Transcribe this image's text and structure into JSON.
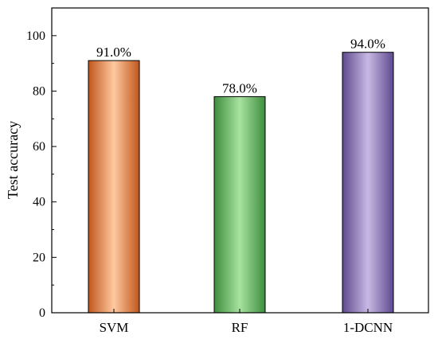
{
  "chart_data": {
    "type": "bar",
    "categories": [
      "SVM",
      "RF",
      "1-DCNN"
    ],
    "values": [
      91.0,
      78.0,
      94.0
    ],
    "value_labels": [
      "91.0%",
      "78.0%",
      "94.0%"
    ],
    "title": "",
    "xlabel": "",
    "ylabel": "Test accuracy",
    "ylim": [
      0,
      110
    ],
    "yticks": [
      0,
      20,
      40,
      60,
      80,
      100
    ],
    "grid": false,
    "bar_colors": [
      {
        "edge": "#c0561c",
        "mid": "#ffc9a0"
      },
      {
        "edge": "#3e8e3e",
        "mid": "#a8e2a0"
      },
      {
        "edge": "#5e4a8e",
        "mid": "#c8b8e4"
      }
    ]
  }
}
